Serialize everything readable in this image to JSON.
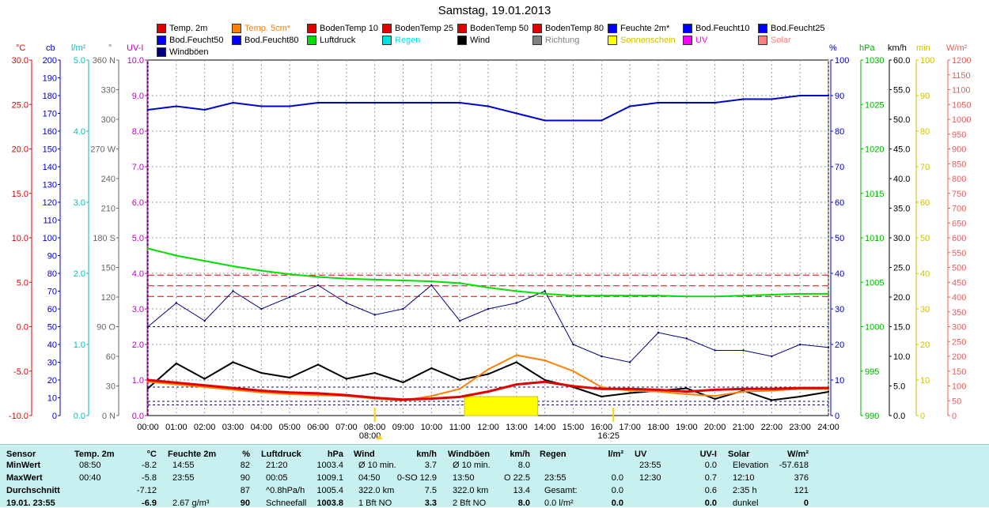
{
  "title": "Samstag, 19.01.2013",
  "legend": [
    {
      "label": "Temp. 2m",
      "color": "#e00000"
    },
    {
      "label": "Temp. 5cm*",
      "color": "#ff8000"
    },
    {
      "label": "BodenTemp 10",
      "color": "#e00000"
    },
    {
      "label": "BodenTemp 25",
      "color": "#e00000"
    },
    {
      "label": "BodenTemp 50",
      "color": "#e00000"
    },
    {
      "label": "BodenTemp 80",
      "color": "#e00000"
    },
    {
      "label": "Feuchte 2m*",
      "color": "#0000ff"
    },
    {
      "label": "Bod.Feucht10",
      "color": "#0000ff"
    },
    {
      "label": "Bod.Feucht25",
      "color": "#0000ff"
    },
    {
      "label": "Bod.Feucht50",
      "color": "#0000ff"
    },
    {
      "label": "Bod.Feucht80",
      "color": "#0000ff"
    },
    {
      "label": "Luftdruck",
      "color": "#00e000"
    },
    {
      "label": "Regen",
      "color": "#00e0e0"
    },
    {
      "label": "Wind",
      "color": "#000000"
    },
    {
      "label": "Richtung",
      "color": "#808080"
    },
    {
      "label": "Sonnenschein",
      "color": "#ffff00"
    },
    {
      "label": "UV",
      "color": "#ff00ff"
    },
    {
      "label": "Solar",
      "color": "#ff8080"
    },
    {
      "label": "Windböen",
      "color": "#000080"
    }
  ],
  "axes": {
    "units_left": [
      "°C",
      "cb",
      "l/m²",
      "°",
      "UV-I"
    ],
    "units_right": [
      "%",
      "hPa",
      "km/h",
      "min",
      "W/m²"
    ],
    "temp": [
      "30.0",
      "25.0",
      "20.0",
      "15.0",
      "10.0",
      "5.0",
      "0.0",
      "-5.0",
      "-10.0"
    ],
    "cb": [
      "200",
      "190",
      "180",
      "170",
      "160",
      "150",
      "140",
      "130",
      "120",
      "110",
      "100",
      "90",
      "80",
      "70",
      "60",
      "50",
      "40",
      "30",
      "20",
      "10",
      "0"
    ],
    "rain": [
      "5.0",
      "4.0",
      "3.0",
      "2.0",
      "1.0",
      "0.0"
    ],
    "dir": [
      "360 N",
      "330",
      "300",
      "270 W",
      "240",
      "210",
      "180 S",
      "150",
      "120",
      "90 O",
      "60",
      "30",
      "0 N"
    ],
    "uv": [
      "10.0",
      "9.0",
      "8.0",
      "7.0",
      "6.0",
      "5.0",
      "4.0",
      "3.0",
      "2.0",
      "1.0",
      "0.0"
    ],
    "hum": [
      "100",
      "90",
      "80",
      "70",
      "60",
      "50",
      "40",
      "30",
      "20",
      "10",
      "0"
    ],
    "hpa": [
      "1030",
      "1025",
      "1020",
      "1015",
      "1010",
      "1005",
      "1000",
      "995",
      "990"
    ],
    "kmh": [
      "60.0",
      "55.0",
      "50.0",
      "45.0",
      "40.0",
      "35.0",
      "30.0",
      "25.0",
      "20.0",
      "15.0",
      "10.0",
      "5.0",
      "0.0"
    ],
    "min": [
      "100",
      "90",
      "80",
      "70",
      "60",
      "50",
      "40",
      "30",
      "20",
      "10",
      "0"
    ],
    "solar": [
      "1200",
      "1150",
      "1100",
      "1050",
      "1000",
      "950",
      "900",
      "850",
      "800",
      "750",
      "700",
      "650",
      "600",
      "550",
      "500",
      "450",
      "400",
      "350",
      "300",
      "250",
      "200",
      "150",
      "100",
      "50",
      "0"
    ],
    "time": [
      "00:00",
      "01:00",
      "02:00",
      "03:00",
      "04:00",
      "05:00",
      "06:00",
      "07:00",
      "08:00",
      "09:00",
      "10:00",
      "11:00",
      "12:00",
      "13:00",
      "14:00",
      "15:00",
      "16:00",
      "17:00",
      "18:00",
      "19:00",
      "20:00",
      "21:00",
      "22:00",
      "23:00",
      "24:00"
    ],
    "sunrise": "08:00",
    "sunset": "16:25"
  },
  "chart_data": {
    "type": "line",
    "title": "Samstag, 19.01.2013",
    "x_hours": [
      0,
      1,
      2,
      3,
      4,
      5,
      6,
      7,
      8,
      9,
      10,
      11,
      12,
      13,
      14,
      15,
      16,
      17,
      18,
      19,
      20,
      21,
      22,
      23,
      24
    ],
    "series": [
      {
        "name": "Feuchte 2m*",
        "unit": "%",
        "color": "#0000ff",
        "values": [
          86,
          87,
          86,
          88,
          87,
          87,
          88,
          88,
          88,
          88,
          88,
          88,
          87,
          85,
          83,
          83,
          83,
          87,
          88,
          88,
          88,
          89,
          89,
          90,
          90
        ]
      },
      {
        "name": "Luftdruck",
        "unit": "hPa",
        "color": "#00e000",
        "values": [
          1008.8,
          1008.0,
          1007.4,
          1006.8,
          1006.3,
          1005.9,
          1005.6,
          1005.4,
          1005.3,
          1005.2,
          1005.1,
          1004.9,
          1004.4,
          1004.0,
          1003.7,
          1003.5,
          1003.5,
          1003.5,
          1003.5,
          1003.4,
          1003.4,
          1003.5,
          1003.6,
          1003.7,
          1003.7
        ]
      },
      {
        "name": "Temp. 2m",
        "unit": "°C",
        "color": "#e00000",
        "values": [
          -6.0,
          -6.3,
          -6.6,
          -6.9,
          -7.2,
          -7.4,
          -7.5,
          -7.7,
          -8.0,
          -8.2,
          -8.1,
          -7.9,
          -7.3,
          -6.5,
          -6.2,
          -6.7,
          -7.0,
          -7.0,
          -7.1,
          -7.3,
          -7.1,
          -7.0,
          -7.0,
          -6.9,
          -6.9
        ]
      },
      {
        "name": "Temp. 5cm*",
        "unit": "°C",
        "color": "#ff8000",
        "values": [
          -6.2,
          -6.5,
          -6.8,
          -7.1,
          -7.4,
          -7.6,
          -7.7,
          -7.8,
          -8.1,
          -8.3,
          -7.8,
          -7.0,
          -4.8,
          -3.2,
          -3.8,
          -5.0,
          -6.8,
          -7.2,
          -7.3,
          -7.6,
          -7.8,
          -7.3,
          -7.2,
          -7.0,
          -7.0
        ]
      },
      {
        "name": "Wind",
        "unit": "km/h",
        "color": "#000000",
        "values": [
          4.6,
          8.8,
          6.2,
          9.0,
          7.2,
          6.4,
          8.6,
          6.2,
          7.2,
          5.6,
          8.0,
          6.0,
          7.0,
          9.0,
          6.0,
          4.8,
          3.2,
          3.8,
          4.2,
          4.6,
          2.8,
          4.2,
          2.6,
          3.2,
          4.0
        ]
      },
      {
        "name": "Windböen",
        "unit": "km/h",
        "color": "#000080",
        "values": [
          15.0,
          19.0,
          16.0,
          21.0,
          18.0,
          20.0,
          22.0,
          19.0,
          17.0,
          18.0,
          22.0,
          16.0,
          18.0,
          19.0,
          21.0,
          12.0,
          10.0,
          9.0,
          14.0,
          13.0,
          11.0,
          11.0,
          10.0,
          12.0,
          11.5
        ]
      }
    ],
    "sunshine": {
      "start": "11:10",
      "end": "13:45",
      "minutes": 121
    },
    "ylabel_left": "°C",
    "ylabel_right": "%"
  },
  "stats": {
    "headers": {
      "sensor": "Sensor",
      "temp": "Temp. 2m",
      "temp_u": "°C",
      "hum": "Feuchte 2m",
      "hum_u": "%",
      "press": "Luftdruck",
      "press_u": "hPa",
      "wind": "Wind",
      "wind_u": "km/h",
      "gust": "Windböen",
      "gust_u": "km/h",
      "rain": "Regen",
      "rain_u": "l/m²",
      "uv": "UV",
      "uv_u": "UV-I",
      "solar": "Solar",
      "solar_u": "W/m²"
    },
    "row_labels": [
      "MinWert",
      "MaxWert",
      "Durchschnitt",
      "19.01. 23:55"
    ],
    "temp": [
      [
        "08:50",
        "-8.2"
      ],
      [
        "00:40",
        "-5.8"
      ],
      [
        "",
        "-7.12"
      ],
      [
        "",
        "-6.9"
      ]
    ],
    "hum": [
      [
        "14:55",
        "82"
      ],
      [
        "23:55",
        "90"
      ],
      [
        "",
        "87"
      ],
      [
        "2.67 g/m³",
        "90"
      ]
    ],
    "press": [
      [
        "21:20",
        "1003.4"
      ],
      [
        "00:05",
        "1009.1"
      ],
      [
        "^0.8hPa/h",
        "1005.4"
      ],
      [
        "Schneefall",
        "1003.8"
      ]
    ],
    "wind": [
      [
        "Ø 10 min.",
        "3.7"
      ],
      [
        "04:50",
        "0-SO 12.9"
      ],
      [
        "322.0 km",
        "7.5"
      ],
      [
        "1 Bft NO",
        "3.3"
      ]
    ],
    "gust": [
      [
        "Ø 10 min.",
        "8.0"
      ],
      [
        "13:50",
        "O 22.5"
      ],
      [
        "322.0 km",
        "13.4"
      ],
      [
        "2 Bft NO",
        "8.0"
      ]
    ],
    "rain": [
      [
        "",
        ""
      ],
      [
        "23:55",
        "0.0"
      ],
      [
        "Gesamt:",
        "0.0"
      ],
      [
        "0.0 l/m²",
        "0.0"
      ]
    ],
    "uv": [
      [
        "23:55",
        "0.0"
      ],
      [
        "12:30",
        "0.7"
      ],
      [
        "",
        "0.6"
      ],
      [
        "",
        "0.0"
      ]
    ],
    "solar": [
      [
        "Elevation",
        "-57.618"
      ],
      [
        "12:10",
        "376"
      ],
      [
        "2:35 h",
        "121"
      ],
      [
        "dunkel",
        "0"
      ]
    ]
  }
}
